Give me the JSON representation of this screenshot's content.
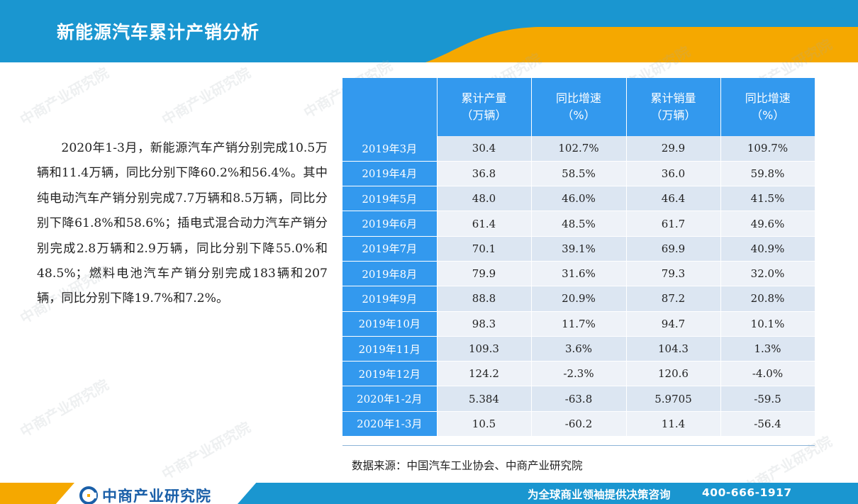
{
  "title": "新能源汽车累计产销分析",
  "watermark": "中商产业研究院",
  "paragraph": "2020年1-3月，新能源汽车产销分别完成10.5万辆和11.4万辆，同比分别下降60.2%和56.4%。其中纯电动汽车产销分别完成7.7万辆和8.5万辆，同比分别下降61.8%和58.6%；插电式混合动力汽车产销分别完成2.8万辆和2.9万辆，同比分别下降55.0%和48.5%；燃料电池汽车产销分别完成183辆和207辆，同比分别下降19.7%和7.2%。",
  "table": {
    "headers": [
      {
        "line1": "累计产量",
        "line2": "（万辆）"
      },
      {
        "line1": "同比增速",
        "line2": "（%）"
      },
      {
        "line1": "累计销量",
        "line2": "（万辆）"
      },
      {
        "line1": "同比增速",
        "line2": "（%）"
      }
    ],
    "rows": [
      {
        "label": "2019年3月",
        "values": [
          "30.4",
          "102.7%",
          "29.9",
          "109.7%"
        ]
      },
      {
        "label": "2019年4月",
        "values": [
          "36.8",
          "58.5%",
          "36.0",
          "59.8%"
        ]
      },
      {
        "label": "2019年5月",
        "values": [
          "48.0",
          "46.0%",
          "46.4",
          "41.5%"
        ]
      },
      {
        "label": "2019年6月",
        "values": [
          "61.4",
          "48.5%",
          "61.7",
          "49.6%"
        ]
      },
      {
        "label": "2019年7月",
        "values": [
          "70.1",
          "39.1%",
          "69.9",
          "40.9%"
        ]
      },
      {
        "label": "2019年8月",
        "values": [
          "79.9",
          "31.6%",
          "79.3",
          "32.0%"
        ]
      },
      {
        "label": "2019年9月",
        "values": [
          "88.8",
          "20.9%",
          "87.2",
          "20.8%"
        ]
      },
      {
        "label": "2019年10月",
        "values": [
          "98.3",
          "11.7%",
          "94.7",
          "10.1%"
        ]
      },
      {
        "label": "2019年11月",
        "values": [
          "109.3",
          "3.6%",
          "104.3",
          "1.3%"
        ]
      },
      {
        "label": "2019年12月",
        "values": [
          "124.2",
          "-2.3%",
          "120.6",
          "-4.0%"
        ]
      },
      {
        "label": "2020年1-2月",
        "values": [
          "5.384",
          "-63.8",
          "5.9705",
          "-59.5"
        ]
      },
      {
        "label": "2020年1-3月",
        "values": [
          "10.5",
          "-60.2",
          "11.4",
          "-56.4"
        ]
      }
    ]
  },
  "source": "数据来源：中国汽车工业协会、中商产业研究院",
  "footer": {
    "logo_text": "中商产业研究院",
    "slogan": "为全球商业领袖提供决策咨询",
    "phone": "400-666-1917"
  },
  "colors": {
    "header_blue": "#1a96d0",
    "accent_orange": "#f5a800",
    "table_header_blue": "#3399ee",
    "row_odd": "#dce6f2",
    "row_even": "#eef2f8"
  }
}
